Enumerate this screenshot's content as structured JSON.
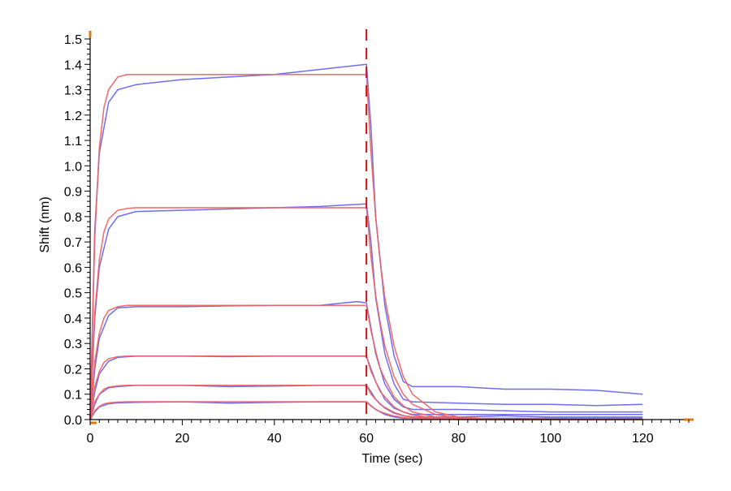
{
  "chart_data": {
    "type": "line",
    "title": "",
    "xlabel": "Time (sec)",
    "ylabel": "Shift (nm)",
    "xlim": [
      0,
      130
    ],
    "ylim": [
      0,
      1.5
    ],
    "x_ticks": [
      0,
      20,
      40,
      60,
      80,
      100,
      120
    ],
    "x_tick_labels": [
      "0",
      "20",
      "40",
      "60",
      "80",
      "100",
      "120"
    ],
    "y_ticks": [
      0.0,
      0.1,
      0.2,
      0.3,
      0.4,
      0.5,
      0.6,
      0.7,
      0.8,
      0.9,
      1.0,
      1.1,
      1.2,
      1.3,
      1.4,
      1.5
    ],
    "y_tick_labels": [
      "0.0",
      "0.1",
      "0.2",
      "0.3",
      "0.4",
      "0.5",
      "0.6",
      "0.7",
      "0.8",
      "0.9",
      "1.0",
      "1.1",
      "1.2",
      "1.3",
      "1.4",
      "1.5"
    ],
    "grid": false,
    "legend": "none",
    "dissociation_start_x": 60,
    "colors": {
      "measured": "#5555ee",
      "fit": "#f06060",
      "overlap": "#8a2a8a",
      "marker_line": "#cc1111",
      "axis_marker": "#e07a10"
    },
    "series": [
      {
        "kind": "measured",
        "x": [
          0,
          1,
          2,
          4,
          6,
          10,
          20,
          30,
          40,
          50,
          55,
          60,
          61,
          62,
          64,
          66,
          68,
          70,
          80,
          90,
          100,
          110,
          120
        ],
        "y": [
          0.0,
          0.75,
          1.05,
          1.25,
          1.3,
          1.32,
          1.34,
          1.35,
          1.36,
          1.38,
          1.39,
          1.4,
          1.15,
          0.8,
          0.45,
          0.25,
          0.15,
          0.13,
          0.13,
          0.12,
          0.12,
          0.115,
          0.1
        ]
      },
      {
        "kind": "measured",
        "x": [
          0,
          1,
          2,
          4,
          6,
          10,
          20,
          30,
          40,
          50,
          55,
          60,
          61,
          62,
          64,
          66,
          68,
          70,
          80,
          90,
          100,
          110,
          120
        ],
        "y": [
          0.0,
          0.4,
          0.6,
          0.75,
          0.8,
          0.82,
          0.825,
          0.83,
          0.835,
          0.84,
          0.845,
          0.85,
          0.7,
          0.48,
          0.26,
          0.14,
          0.08,
          0.07,
          0.065,
          0.06,
          0.06,
          0.055,
          0.06
        ]
      },
      {
        "kind": "measured",
        "x": [
          0,
          1,
          2,
          4,
          6,
          10,
          20,
          30,
          40,
          50,
          55,
          58,
          60,
          61,
          62,
          64,
          66,
          68,
          70,
          80,
          90,
          100,
          110,
          120
        ],
        "y": [
          0.0,
          0.2,
          0.32,
          0.41,
          0.44,
          0.445,
          0.445,
          0.448,
          0.45,
          0.45,
          0.46,
          0.465,
          0.46,
          0.36,
          0.26,
          0.14,
          0.08,
          0.05,
          0.04,
          0.04,
          0.035,
          0.03,
          0.03,
          0.03
        ]
      },
      {
        "kind": "measured",
        "x": [
          0,
          1,
          2,
          4,
          6,
          10,
          20,
          30,
          40,
          50,
          60,
          61,
          62,
          64,
          66,
          68,
          70,
          80,
          90,
          100,
          110,
          120
        ],
        "y": [
          0.0,
          0.11,
          0.18,
          0.23,
          0.245,
          0.25,
          0.25,
          0.248,
          0.25,
          0.25,
          0.25,
          0.2,
          0.15,
          0.08,
          0.045,
          0.03,
          0.02,
          0.02,
          0.02,
          0.02,
          0.02,
          0.02
        ]
      },
      {
        "kind": "measured",
        "x": [
          0,
          1,
          2,
          4,
          6,
          10,
          20,
          30,
          40,
          50,
          60,
          61,
          62,
          64,
          66,
          68,
          70,
          80,
          90,
          100,
          110,
          120
        ],
        "y": [
          0.0,
          0.06,
          0.1,
          0.125,
          0.13,
          0.135,
          0.135,
          0.13,
          0.132,
          0.135,
          0.135,
          0.11,
          0.08,
          0.045,
          0.025,
          0.015,
          0.01,
          0.01,
          0.015,
          0.01,
          0.01,
          0.01
        ]
      },
      {
        "kind": "measured",
        "x": [
          0,
          1,
          2,
          4,
          6,
          10,
          20,
          30,
          40,
          50,
          60,
          61,
          62,
          64,
          66,
          68,
          70,
          80,
          90,
          100,
          110,
          120
        ],
        "y": [
          0.0,
          0.03,
          0.05,
          0.062,
          0.066,
          0.068,
          0.07,
          0.065,
          0.068,
          0.07,
          0.07,
          0.055,
          0.04,
          0.02,
          0.01,
          0.005,
          0.005,
          0.005,
          0.005,
          0.005,
          0.005,
          0.005
        ]
      },
      {
        "kind": "fit",
        "x": [
          0,
          1,
          2,
          3,
          4,
          6,
          8,
          10,
          20,
          30,
          40,
          50,
          60,
          61,
          62,
          63,
          64,
          66,
          68,
          70,
          75,
          80,
          90,
          100,
          110,
          120
        ],
        "y": [
          0.0,
          0.72,
          1.07,
          1.23,
          1.3,
          1.35,
          1.36,
          1.36,
          1.36,
          1.36,
          1.36,
          1.36,
          1.36,
          1.05,
          0.8,
          0.62,
          0.48,
          0.29,
          0.17,
          0.1,
          0.03,
          0.01,
          0.0,
          0.0,
          0.0,
          0.0
        ]
      },
      {
        "kind": "fit",
        "x": [
          0,
          1,
          2,
          3,
          4,
          6,
          8,
          10,
          20,
          30,
          40,
          50,
          60,
          61,
          62,
          63,
          64,
          66,
          68,
          70,
          75,
          80,
          90,
          100,
          110,
          120
        ],
        "y": [
          0.0,
          0.42,
          0.63,
          0.74,
          0.79,
          0.825,
          0.832,
          0.835,
          0.835,
          0.835,
          0.835,
          0.835,
          0.835,
          0.64,
          0.49,
          0.38,
          0.29,
          0.17,
          0.1,
          0.06,
          0.02,
          0.005,
          0.0,
          0.0,
          0.0,
          0.0
        ]
      },
      {
        "kind": "fit",
        "x": [
          0,
          1,
          2,
          3,
          4,
          6,
          8,
          10,
          20,
          30,
          40,
          50,
          60,
          61,
          62,
          63,
          64,
          66,
          68,
          70,
          75,
          80,
          90,
          100,
          110,
          120
        ],
        "y": [
          0.0,
          0.23,
          0.34,
          0.4,
          0.43,
          0.445,
          0.45,
          0.45,
          0.45,
          0.45,
          0.45,
          0.45,
          0.45,
          0.35,
          0.27,
          0.2,
          0.16,
          0.09,
          0.055,
          0.03,
          0.01,
          0.003,
          0.0,
          0.0,
          0.0,
          0.0
        ]
      },
      {
        "kind": "fit",
        "x": [
          0,
          1,
          2,
          3,
          4,
          6,
          8,
          10,
          20,
          30,
          40,
          50,
          60,
          61,
          62,
          63,
          64,
          66,
          68,
          70,
          75,
          80,
          90,
          100,
          110,
          120
        ],
        "y": [
          0.0,
          0.13,
          0.19,
          0.225,
          0.24,
          0.248,
          0.25,
          0.25,
          0.25,
          0.25,
          0.25,
          0.25,
          0.25,
          0.19,
          0.15,
          0.11,
          0.09,
          0.05,
          0.03,
          0.018,
          0.005,
          0.001,
          0.0,
          0.0,
          0.0,
          0.0
        ]
      },
      {
        "kind": "fit",
        "x": [
          0,
          1,
          2,
          3,
          4,
          6,
          8,
          10,
          20,
          30,
          40,
          50,
          60,
          61,
          62,
          63,
          64,
          66,
          68,
          70,
          75,
          80,
          90,
          100,
          110,
          120
        ],
        "y": [
          0.0,
          0.07,
          0.1,
          0.12,
          0.128,
          0.133,
          0.135,
          0.135,
          0.135,
          0.135,
          0.135,
          0.135,
          0.135,
          0.1,
          0.08,
          0.06,
          0.048,
          0.028,
          0.016,
          0.01,
          0.003,
          0.001,
          0.0,
          0.0,
          0.0,
          0.0
        ]
      },
      {
        "kind": "fit",
        "x": [
          0,
          1,
          2,
          3,
          4,
          6,
          8,
          10,
          20,
          30,
          40,
          50,
          60,
          61,
          62,
          63,
          64,
          66,
          68,
          70,
          75,
          80,
          90,
          100,
          110,
          120
        ],
        "y": [
          0.0,
          0.035,
          0.052,
          0.062,
          0.066,
          0.069,
          0.07,
          0.07,
          0.07,
          0.07,
          0.07,
          0.07,
          0.07,
          0.053,
          0.041,
          0.031,
          0.025,
          0.014,
          0.008,
          0.005,
          0.0015,
          0.0005,
          0.0,
          0.0,
          0.0,
          0.0
        ]
      }
    ]
  }
}
